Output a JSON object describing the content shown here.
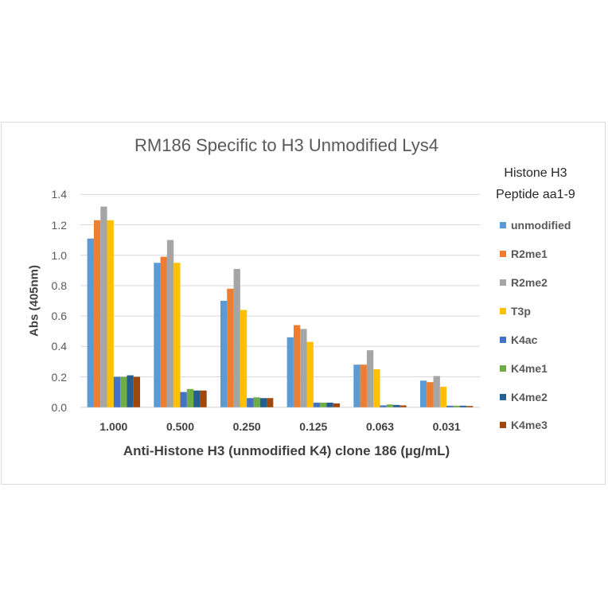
{
  "chart_data": {
    "type": "bar",
    "title": "RM186 Specific to H3 Unmodified Lys4",
    "xlabel": "Anti-Histone H3 (unmodified K4) clone 186 (µg/mL)",
    "ylabel": "Abs (405nm)",
    "ylim": [
      0,
      1.4
    ],
    "yticks": [
      "0.0",
      "0.2",
      "0.4",
      "0.6",
      "0.8",
      "1.0",
      "1.2",
      "1.4"
    ],
    "grid": true,
    "legend_position": "right",
    "legend_title": [
      "Histone H3",
      "Peptide aa1-9"
    ],
    "categories": [
      "1.000",
      "0.500",
      "0.250",
      "0.125",
      "0.063",
      "0.031"
    ],
    "series": [
      {
        "name": "unmodified",
        "color": "#5B9BD5",
        "values": [
          1.11,
          0.95,
          0.7,
          0.46,
          0.28,
          0.175
        ]
      },
      {
        "name": "R2me1",
        "color": "#ED7D31",
        "values": [
          1.23,
          0.99,
          0.78,
          0.54,
          0.28,
          0.165
        ]
      },
      {
        "name": "R2me2",
        "color": "#A5A5A5",
        "values": [
          1.32,
          1.1,
          0.91,
          0.515,
          0.375,
          0.205
        ]
      },
      {
        "name": "T3p",
        "color": "#FFC000",
        "values": [
          1.23,
          0.95,
          0.64,
          0.43,
          0.25,
          0.135
        ]
      },
      {
        "name": "K4ac",
        "color": "#4472C4",
        "values": [
          0.2,
          0.1,
          0.06,
          0.03,
          0.012,
          0.01
        ]
      },
      {
        "name": "K4me1",
        "color": "#70AD47",
        "values": [
          0.2,
          0.12,
          0.065,
          0.03,
          0.018,
          0.01
        ]
      },
      {
        "name": "K4me2",
        "color": "#255E91",
        "values": [
          0.21,
          0.11,
          0.06,
          0.03,
          0.015,
          0.01
        ]
      },
      {
        "name": "K4me3",
        "color": "#9E480E",
        "values": [
          0.2,
          0.11,
          0.06,
          0.025,
          0.012,
          0.008
        ]
      }
    ]
  }
}
